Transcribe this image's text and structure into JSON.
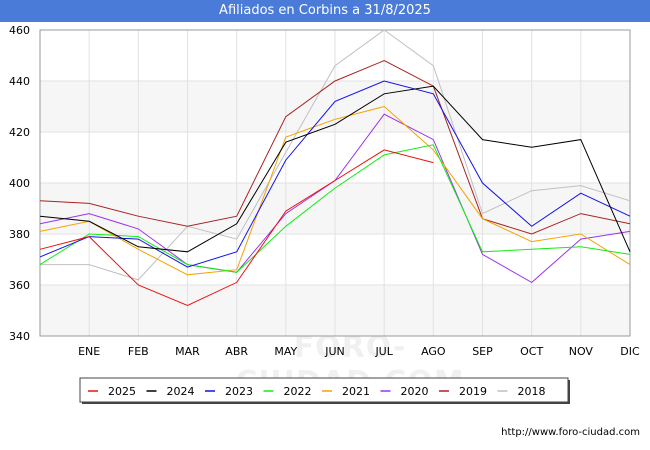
{
  "page": {
    "title": "Afiliados en Corbins a 31/8/2025",
    "source": "http://www.foro-ciudad.com",
    "watermark": "FORO-CIUDAD.COM"
  },
  "chart_data": {
    "type": "line",
    "title": "Afiliados en Corbins a 31/8/2025",
    "xlabel": "",
    "ylabel": "",
    "categories": [
      "",
      "ENE",
      "FEB",
      "MAR",
      "ABR",
      "MAY",
      "JUN",
      "JUL",
      "AGO",
      "SEP",
      "OCT",
      "NOV",
      "DIC"
    ],
    "ylim": [
      340,
      460
    ],
    "yticks": [
      340,
      360,
      380,
      400,
      420,
      440,
      460
    ],
    "grid": true,
    "legend_position": "bottom",
    "series": [
      {
        "name": "2025",
        "color": "#ee1111",
        "values": [
          374,
          379,
          360,
          352,
          361,
          389,
          401,
          413,
          408,
          null,
          null,
          null,
          null
        ]
      },
      {
        "name": "2024",
        "color": "#000000",
        "values": [
          387,
          385,
          375,
          373,
          384,
          416,
          423,
          435,
          438,
          417,
          414,
          417,
          373
        ]
      },
      {
        "name": "2023",
        "color": "#1111ee",
        "values": [
          371,
          379,
          378,
          367,
          373,
          409,
          432,
          440,
          435,
          400,
          383,
          396,
          387
        ]
      },
      {
        "name": "2022",
        "color": "#11ee11",
        "values": [
          368,
          380,
          379,
          368,
          365,
          383,
          398,
          411,
          415,
          373,
          374,
          375,
          372
        ]
      },
      {
        "name": "2021",
        "color": "#f5a300",
        "values": [
          381,
          385,
          374,
          364,
          366,
          418,
          425,
          430,
          413,
          386,
          377,
          380,
          368
        ]
      },
      {
        "name": "2020",
        "color": "#9a33ee",
        "values": [
          384,
          388,
          382,
          368,
          365,
          388,
          401,
          427,
          417,
          372,
          361,
          378,
          381
        ]
      },
      {
        "name": "2019",
        "color": "#aa2222",
        "values": [
          393,
          392,
          387,
          383,
          387,
          426,
          440,
          448,
          438,
          386,
          380,
          388,
          384
        ]
      },
      {
        "name": "2018",
        "color": "#c0c0c0",
        "values": [
          368,
          368,
          362,
          383,
          378,
          412,
          446,
          460,
          446,
          388,
          397,
          399,
          393
        ]
      }
    ]
  }
}
